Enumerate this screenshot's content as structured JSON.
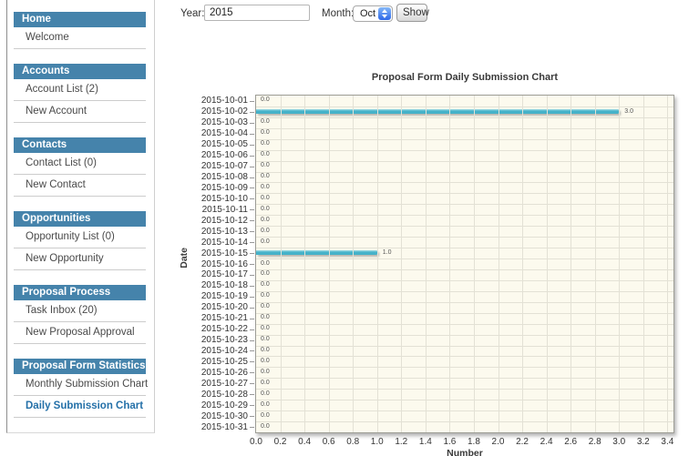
{
  "toolbar": {
    "year_label": "Year:",
    "year_value": "2015",
    "month_label": "Month:",
    "month_value": "Oct",
    "show_label": "Show"
  },
  "sidebar": {
    "sections": [
      {
        "header": "Home",
        "items": [
          {
            "label": "Welcome",
            "active": false
          }
        ]
      },
      {
        "header": "Accounts",
        "items": [
          {
            "label": "Account List (2)",
            "active": false
          },
          {
            "label": "New Account",
            "active": false
          }
        ]
      },
      {
        "header": "Contacts",
        "items": [
          {
            "label": "Contact List (0)",
            "active": false
          },
          {
            "label": "New Contact",
            "active": false
          }
        ]
      },
      {
        "header": "Opportunities",
        "items": [
          {
            "label": "Opportunity List (0)",
            "active": false
          },
          {
            "label": "New Opportunity",
            "active": false
          }
        ]
      },
      {
        "header": "Proposal Process",
        "items": [
          {
            "label": "Task Inbox (20)",
            "active": false
          },
          {
            "label": "New Proposal Approval",
            "active": false
          }
        ]
      },
      {
        "header": "Proposal Form Statistics",
        "items": [
          {
            "label": "Monthly Submission Chart",
            "active": false
          },
          {
            "label": "Daily Submission Chart",
            "active": true
          }
        ]
      }
    ]
  },
  "chart_data": {
    "type": "bar",
    "orientation": "horizontal",
    "title": "Proposal Form Daily Submission Chart",
    "xlabel": "Number",
    "ylabel": "Date",
    "categories": [
      "2015-10-01",
      "2015-10-02",
      "2015-10-03",
      "2015-10-04",
      "2015-10-05",
      "2015-10-06",
      "2015-10-07",
      "2015-10-08",
      "2015-10-09",
      "2015-10-10",
      "2015-10-11",
      "2015-10-12",
      "2015-10-13",
      "2015-10-14",
      "2015-10-15",
      "2015-10-16",
      "2015-10-17",
      "2015-10-18",
      "2015-10-19",
      "2015-10-20",
      "2015-10-21",
      "2015-10-22",
      "2015-10-23",
      "2015-10-24",
      "2015-10-25",
      "2015-10-26",
      "2015-10-27",
      "2015-10-28",
      "2015-10-29",
      "2015-10-30",
      "2015-10-31"
    ],
    "values": [
      0,
      3,
      0,
      0,
      0,
      0,
      0,
      0,
      0,
      0,
      0,
      0,
      0,
      0,
      1,
      0,
      0,
      0,
      0,
      0,
      0,
      0,
      0,
      0,
      0,
      0,
      0,
      0,
      0,
      0,
      0
    ],
    "xlim": [
      0,
      3.45
    ],
    "xticks": [
      0,
      0.2,
      0.4,
      0.6,
      0.8,
      1.0,
      1.2,
      1.4,
      1.6,
      1.8,
      2.0,
      2.2,
      2.4,
      2.6,
      2.8,
      3.0,
      3.2,
      3.4
    ],
    "grid": true,
    "bar_color": "#45b2c9",
    "bar_highlight": "#9fdbe5",
    "plot_bg": "#fcfaee"
  },
  "colors": {
    "accent_blue": "#4583ab",
    "active_link": "#2470a8",
    "select_stepper_blue": "#2d68e8"
  }
}
